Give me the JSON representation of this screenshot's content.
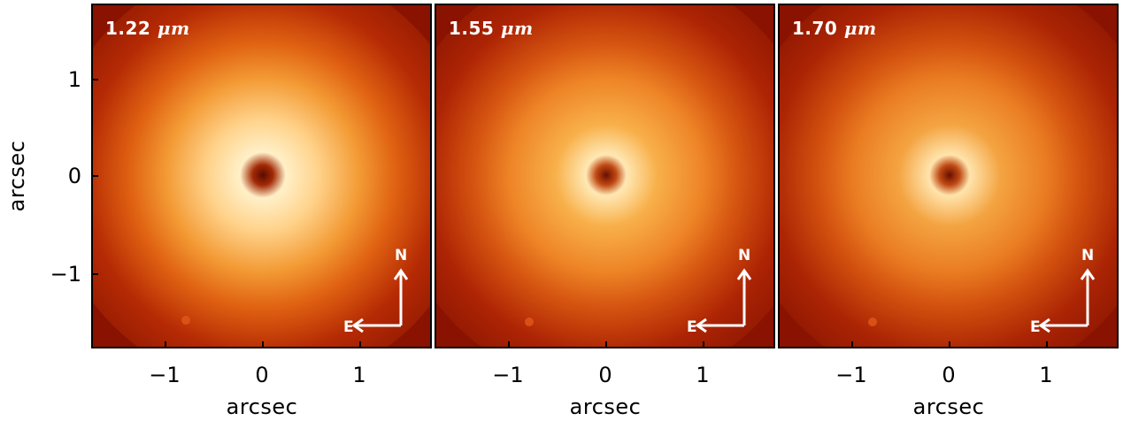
{
  "panels": [
    {
      "label_value": "1.22",
      "label_unit": "μm"
    },
    {
      "label_value": "1.55",
      "label_unit": "μm"
    },
    {
      "label_value": "1.70",
      "label_unit": "μm"
    }
  ],
  "compass": {
    "north": "N",
    "east": "E"
  },
  "axes": {
    "xlabel": "arcsec",
    "ylabel": "arcsec",
    "xticks": [
      "−1",
      "0",
      "1"
    ],
    "yticks": [
      "1",
      "0",
      "−1"
    ]
  },
  "colors": {
    "background": "#8e1200",
    "halo": "#f07a18",
    "core": "#ffd890",
    "labels": "#ffffff"
  }
}
